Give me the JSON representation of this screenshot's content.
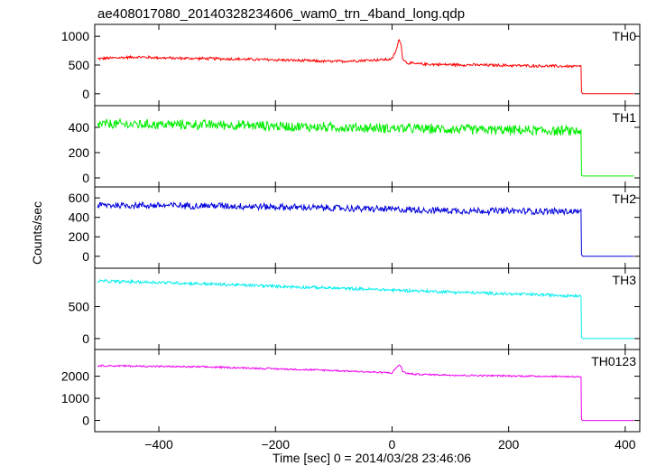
{
  "chart_data": {
    "type": "line",
    "title": "ae408017080_20140328234606_wam0_trn_4band_long.qdp",
    "xlabel": "Time [sec] 0 = 2014/03/28 23:46:06",
    "ylabel": "Counts/sec",
    "xlim": [
      -510,
      425
    ],
    "x_ticks": [
      -400,
      -200,
      0,
      200,
      400
    ],
    "x_tick_labels": [
      "−400",
      "−200",
      "0",
      "200",
      "400"
    ],
    "data_end_x": 325,
    "tail_end_x": 415,
    "panels": [
      {
        "name": "TH0",
        "color": "#ff0000",
        "ylim": [
          -50,
          1050
        ],
        "y_ticks": [
          0,
          500,
          1000
        ],
        "y_tick_labels": [
          "0",
          "500",
          "1000"
        ],
        "x": [
          -505,
          -440,
          -380,
          -300,
          -200,
          -100,
          0,
          8,
          12,
          15,
          18,
          25,
          40,
          80,
          150,
          250,
          320
        ],
        "y": [
          610,
          640,
          620,
          610,
          590,
          560,
          600,
          780,
          950,
          900,
          620,
          540,
          520,
          510,
          500,
          485,
          475
        ],
        "noise": 28,
        "post_level": 30,
        "tail_level": 0
      },
      {
        "name": "TH1",
        "color": "#00ee00",
        "ylim": [
          0,
          500
        ],
        "y_ticks": [
          0,
          200,
          400
        ],
        "y_tick_labels": [
          "0",
          "200",
          "400"
        ],
        "x": [
          -505,
          -300,
          -100,
          100,
          320
        ],
        "y": [
          425,
          420,
          400,
          385,
          370
        ],
        "noise": 45,
        "post_level": 20,
        "tail_level": 15
      },
      {
        "name": "TH2",
        "color": "#0000dd",
        "ylim": [
          -30,
          620
        ],
        "y_ticks": [
          0,
          200,
          400,
          600
        ],
        "y_tick_labels": [
          "0",
          "200",
          "400",
          "600"
        ],
        "x": [
          -505,
          -300,
          -100,
          100,
          320
        ],
        "y": [
          525,
          520,
          495,
          470,
          460
        ],
        "noise": 40,
        "post_level": 20,
        "tail_level": 0
      },
      {
        "name": "TH3",
        "color": "#00eeee",
        "ylim": [
          -30,
          960
        ],
        "y_ticks": [
          0,
          500
        ],
        "y_tick_labels": [
          "0",
          "500"
        ],
        "x": [
          -505,
          -400,
          -200,
          0,
          200,
          320
        ],
        "y": [
          900,
          880,
          820,
          760,
          700,
          670
        ],
        "noise": 28,
        "post_level": 20,
        "tail_level": 0
      },
      {
        "name": "TH0123",
        "color": "#ee00ee",
        "ylim": [
          -100,
          2800
        ],
        "y_ticks": [
          0,
          1000,
          2000
        ],
        "y_tick_labels": [
          "0",
          "1000",
          "2000"
        ],
        "x": [
          -505,
          -300,
          -100,
          0,
          8,
          12,
          15,
          18,
          25,
          40,
          120,
          250,
          320
        ],
        "y": [
          2480,
          2410,
          2260,
          2150,
          2400,
          2520,
          2450,
          2230,
          2130,
          2090,
          2040,
          2000,
          1980
        ],
        "noise": 45,
        "post_level": 50,
        "tail_level": 0
      }
    ],
    "grid": false,
    "legend": "none"
  }
}
